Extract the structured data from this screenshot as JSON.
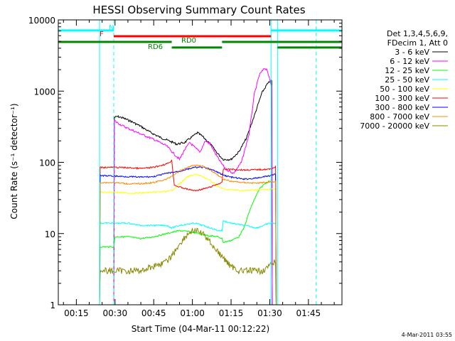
{
  "chart_data": {
    "type": "line",
    "title": "HESSI Observing Summary Count Rates",
    "xlabel": "Start Time (04-Mar-11 00:12:22)",
    "ylabel": "Count Rate (s⁻¹ detector⁻¹)",
    "y_scale": "log",
    "ylim": [
      1,
      10000
    ],
    "xlim_minutes": [
      8,
      118
    ],
    "x_ticks": [
      {
        "minute": 15,
        "label": "00:15"
      },
      {
        "minute": 30,
        "label": "00:30"
      },
      {
        "minute": 45,
        "label": "00:45"
      },
      {
        "minute": 60,
        "label": "01:00"
      },
      {
        "minute": 75,
        "label": "01:15"
      },
      {
        "minute": 90,
        "label": "01:30"
      },
      {
        "minute": 105,
        "label": "01:45"
      }
    ],
    "y_ticks": [
      {
        "value": 1,
        "label": "1"
      },
      {
        "value": 10,
        "label": "10"
      },
      {
        "value": 100,
        "label": "100"
      },
      {
        "value": 1000,
        "label": "1000"
      },
      {
        "value": 10000,
        "label": "10000"
      }
    ],
    "legend_header": [
      "Det 1,3,4,5,6,9,",
      "FDecim 1, Att 0"
    ],
    "legend_position": "right",
    "timestamp": "4-Mar-2011 03:55",
    "series": [
      {
        "name": "3 - 6 keV",
        "color": "#000000",
        "x": [
          29.5,
          30,
          31,
          33,
          36,
          40,
          44,
          48,
          51,
          54,
          57,
          60,
          62,
          64,
          67,
          70,
          72,
          75,
          78,
          81,
          84,
          87,
          89,
          90.5,
          91
        ],
        "y": [
          0,
          430,
          440,
          420,
          380,
          320,
          260,
          220,
          200,
          180,
          190,
          230,
          260,
          230,
          180,
          130,
          110,
          110,
          140,
          220,
          450,
          950,
          1250,
          1400,
          0
        ]
      },
      {
        "name": "6 - 12 keV",
        "color": "#ff00ff",
        "x": [
          29.5,
          30,
          32,
          35,
          40,
          45,
          50,
          53,
          55,
          57,
          59,
          61,
          63,
          65,
          67,
          69,
          71,
          73,
          76,
          79,
          82,
          84,
          86,
          88,
          89,
          90.5,
          91
        ],
        "y": [
          0,
          380,
          340,
          300,
          250,
          210,
          170,
          130,
          110,
          150,
          190,
          160,
          140,
          200,
          180,
          130,
          100,
          80,
          70,
          100,
          250,
          900,
          1700,
          2100,
          2000,
          1200,
          0
        ]
      },
      {
        "name": "12 - 25 keV",
        "color": "#00ff00",
        "x": [
          24,
          25,
          29.5,
          30,
          35,
          40,
          45,
          50,
          55,
          60,
          65,
          70,
          71.5,
          72,
          75,
          78,
          80,
          82,
          84,
          86,
          88,
          90
        ],
        "y": [
          0,
          6.5,
          6.5,
          9,
          9,
          8.5,
          9,
          10,
          11,
          10.5,
          9.5,
          9,
          8.5,
          7.5,
          8,
          9,
          12,
          20,
          30,
          42,
          50,
          55
        ]
      },
      {
        "name": "25 - 50 keV",
        "color": "#00ffff",
        "x": [
          24,
          25,
          30,
          35,
          40,
          45,
          50,
          52,
          55,
          58,
          61,
          64,
          67,
          70,
          71.5,
          72,
          75,
          80,
          85,
          90,
          92,
          92.5
        ],
        "y": [
          0,
          14,
          14,
          14,
          13,
          13,
          13,
          12,
          13,
          13.5,
          14,
          13,
          12,
          11,
          11,
          15,
          14,
          13,
          12,
          14,
          14,
          0
        ]
      },
      {
        "name": "50 - 100 keV",
        "color": "#ffff00",
        "x": [
          24,
          25,
          30,
          35,
          40,
          45,
          50,
          52,
          55,
          58,
          61,
          64,
          67,
          70,
          72,
          75,
          80,
          85,
          90,
          92,
          92.5
        ],
        "y": [
          0,
          38,
          38,
          37,
          37,
          38,
          39,
          40,
          50,
          62,
          68,
          63,
          55,
          46,
          42,
          41,
          40,
          41,
          42,
          42,
          0
        ]
      },
      {
        "name": "100 - 300 keV",
        "color": "#ff0000",
        "x": [
          24,
          25,
          30,
          35,
          40,
          45,
          50,
          52,
          53,
          55,
          58,
          61,
          64,
          67,
          70,
          71.5,
          72,
          75,
          80,
          85,
          90,
          92,
          92.5
        ],
        "y": [
          0,
          85,
          85,
          84,
          82,
          85,
          95,
          105,
          48,
          45,
          42,
          40,
          42,
          45,
          50,
          52,
          80,
          80,
          78,
          79,
          80,
          86,
          0
        ]
      },
      {
        "name": "300 - 800 keV",
        "color": "#0000ff",
        "x": [
          24,
          25,
          30,
          35,
          40,
          45,
          50,
          55,
          58,
          61,
          64,
          67,
          70,
          72,
          75,
          80,
          85,
          90,
          92,
          92.5
        ],
        "y": [
          0,
          65,
          64,
          63,
          62,
          63,
          70,
          75,
          80,
          85,
          85,
          80,
          72,
          66,
          62,
          58,
          60,
          65,
          68,
          0
        ]
      },
      {
        "name": "800 - 7000 keV",
        "color": "#ff8800",
        "x": [
          24,
          25,
          30,
          35,
          40,
          45,
          50,
          55,
          58,
          61,
          64,
          67,
          70,
          72,
          75,
          80,
          85,
          90,
          92,
          92.5
        ],
        "y": [
          0,
          52,
          52,
          50,
          50,
          52,
          58,
          75,
          85,
          92,
          88,
          78,
          66,
          58,
          54,
          52,
          51,
          53,
          54,
          0
        ]
      },
      {
        "name": "7000 - 20000 keV",
        "color": "#888800",
        "x": [
          24,
          25,
          30,
          35,
          40,
          45,
          50,
          53,
          56,
          59,
          61,
          63,
          66,
          69,
          72,
          75,
          78,
          81,
          84,
          87,
          90,
          92,
          92.5
        ],
        "y": [
          0,
          3,
          3,
          3,
          3,
          3.5,
          4,
          5.5,
          8,
          10.5,
          11,
          10.5,
          8.5,
          6,
          4.5,
          3.5,
          3,
          3,
          3,
          3,
          3.5,
          4,
          0
        ]
      }
    ],
    "vertical_lines": [
      {
        "minute": 24,
        "color": "#00ffff",
        "style": "solid"
      },
      {
        "minute": 29.5,
        "color": "#00ffff",
        "style": "dashed"
      },
      {
        "minute": 90.5,
        "color": "#00ffff",
        "style": "solid"
      },
      {
        "minute": 93,
        "color": "#00ffff",
        "style": "solid"
      },
      {
        "minute": 108,
        "color": "#00ffff",
        "style": "dashed"
      }
    ],
    "state_bars": [
      {
        "label": "N",
        "color": "#00ffff",
        "segments": [
          [
            8,
            29.5
          ],
          [
            90.5,
            118
          ]
        ],
        "y": 7100
      },
      {
        "label": "F",
        "color": "#ff0000",
        "segments": [
          [
            29.5,
            90.5
          ]
        ],
        "y": 5900
      },
      {
        "label": "RD0",
        "color": "#008800",
        "segments": [
          [
            8,
            52
          ],
          [
            71.5,
            118
          ]
        ],
        "y": 4900
      },
      {
        "label": "RD6",
        "color": "#008800",
        "segments": [
          [
            52,
            71.5
          ],
          [
            93,
            118
          ]
        ],
        "y": 4100
      }
    ]
  }
}
